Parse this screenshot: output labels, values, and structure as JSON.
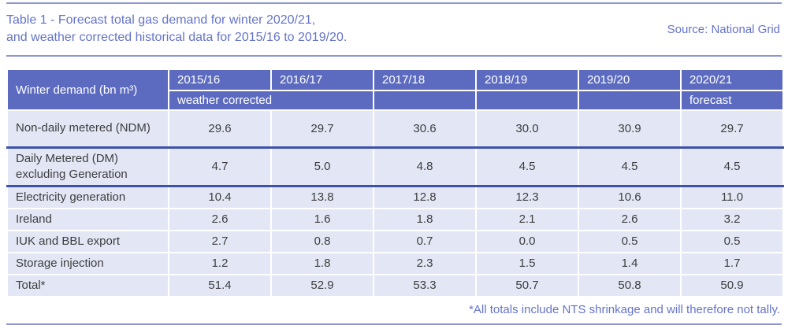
{
  "page": {
    "title_line1": "Table 1 - Forecast total gas demand for winter 2020/21,",
    "title_line2": "and weather corrected historical data for 2015/16 to 2019/20.",
    "source": "Source: National Grid",
    "footnote": "*All totals include NTS shrinkage and will therefore not tally."
  },
  "colors": {
    "header_bg": "#5c6bc0",
    "row_bg": "#e3e6f4",
    "accent_text": "#6574c8",
    "dark_separator": "#3d51a9",
    "rule_line": "#8d96d0",
    "body_text": "#3e3e40",
    "header_text": "#ffffff"
  },
  "table": {
    "corner_label": "Winter demand (bn m³)",
    "years": [
      "2015/16",
      "2016/17",
      "2017/18",
      "2018/19",
      "2019/20",
      "2020/21"
    ],
    "subheader": {
      "weather_corrected": "weather corrected",
      "forecast": "forecast"
    },
    "rows": [
      {
        "label": "Non-daily metered (NDM)",
        "values": [
          "29.6",
          "29.7",
          "30.6",
          "30.0",
          "30.9",
          "29.7"
        ]
      },
      {
        "label": "Daily Metered (DM) excluding Generation",
        "values": [
          "4.7",
          "5.0",
          "4.8",
          "4.5",
          "4.5",
          "4.5"
        ]
      },
      {
        "label": "Electricity generation",
        "values": [
          "10.4",
          "13.8",
          "12.8",
          "12.3",
          "10.6",
          "11.0"
        ]
      },
      {
        "label": "Ireland",
        "values": [
          "2.6",
          "1.6",
          "1.8",
          "2.1",
          "2.6",
          "3.2"
        ]
      },
      {
        "label": "IUK and BBL export",
        "values": [
          "2.7",
          "0.8",
          "0.7",
          "0.0",
          "0.5",
          "0.5"
        ]
      },
      {
        "label": "Storage injection",
        "values": [
          "1.2",
          "1.8",
          "2.3",
          "1.5",
          "1.4",
          "1.7"
        ]
      },
      {
        "label": "Total*",
        "values": [
          "51.4",
          "52.9",
          "53.3",
          "50.7",
          "50.8",
          "50.9"
        ]
      }
    ]
  }
}
